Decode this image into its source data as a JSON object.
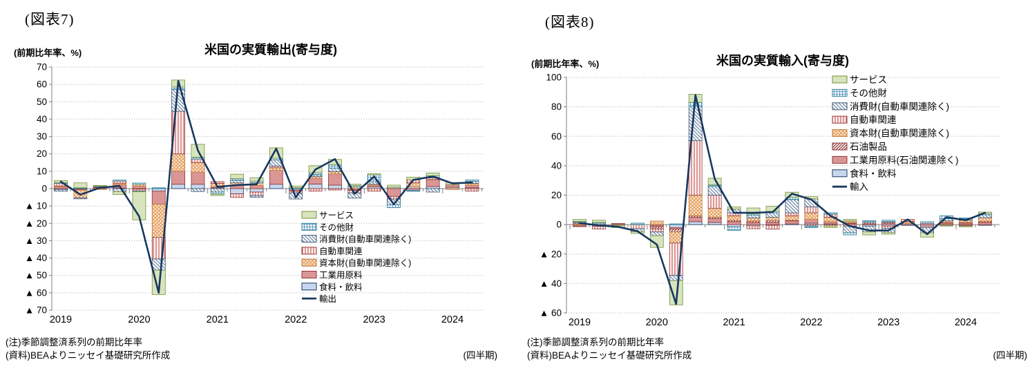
{
  "figure7": {
    "tag": "(図表7)",
    "unit_label": "(前期比年率、%)",
    "title": "米国の実質輸出(寄与度)",
    "note1": "(注)季節調整済系列の前期比年率",
    "note2": "(資料)BEAよりニッセイ基礎研究所作成",
    "axis_note": "(四半期)",
    "chart_data": {
      "type": "bar",
      "subtype": "stacked-bar-with-line",
      "x": [
        "2019Q1",
        "2019Q2",
        "2019Q3",
        "2019Q4",
        "2020Q1",
        "2020Q2",
        "2020Q3",
        "2020Q4",
        "2021Q1",
        "2021Q2",
        "2021Q3",
        "2021Q4",
        "2022Q1",
        "2022Q2",
        "2022Q3",
        "2022Q4",
        "2023Q1",
        "2023Q2",
        "2023Q3",
        "2023Q4",
        "2024Q1",
        "2024Q2"
      ],
      "year_labels": [
        "2019",
        "2020",
        "2021",
        "2022",
        "2023",
        "2024"
      ],
      "ylim": [
        -70,
        70
      ],
      "ytick_step": 10,
      "negative_tick_prefix": "▲",
      "grid": "dotted-horizontal",
      "legend_position": "inside-right",
      "series": [
        {
          "name": "サービス",
          "swatch": {
            "type": "solid",
            "bg": "#d7e4bd",
            "fg": "#d7e4bd",
            "stroke": "#76923c"
          },
          "values": [
            1.2,
            2.8,
            0.3,
            -1.6,
            -16.2,
            -14.0,
            4.0,
            7.5,
            -0.8,
            2.5,
            2.0,
            6.0,
            1.0,
            4.0,
            3.0,
            0.7,
            0.5,
            1.2,
            1.5,
            1.6,
            1.2,
            0.0
          ]
        },
        {
          "name": "その他財",
          "swatch": {
            "type": "grid",
            "bg": "#eef5fb",
            "fg": "#4a8ab5",
            "stroke": "#31859c"
          },
          "values": [
            0.4,
            0.5,
            0.0,
            0.5,
            0.7,
            0.5,
            1.5,
            1.0,
            -1.2,
            1.0,
            1.0,
            1.0,
            0.5,
            1.3,
            2.0,
            0.8,
            4.0,
            -1.7,
            -0.6,
            1.2,
            0.0,
            0.8
          ]
        },
        {
          "name": "消費財(自動車関連除く)",
          "swatch": {
            "type": "diag-down",
            "bg": "#ffffff",
            "fg": "#7d93ad",
            "stroke": "#3f5571"
          },
          "values": [
            -1.0,
            -0.5,
            0.5,
            -1.8,
            -0.5,
            -6.5,
            12.5,
            -1.7,
            -2.0,
            1.5,
            -1.0,
            3.5,
            -3.5,
            1.0,
            2.0,
            -3.0,
            1.5,
            -3.3,
            0.0,
            -2.0,
            0.0,
            1.2
          ]
        },
        {
          "name": "自動車関連",
          "swatch": {
            "type": "vlines",
            "bg": "#fdf0ef",
            "fg": "#c96a66",
            "stroke": "#953735"
          },
          "values": [
            1.5,
            0.0,
            0.4,
            1.3,
            -1.0,
            -12.5,
            24.5,
            2.0,
            1.0,
            -2.1,
            -2.0,
            1.0,
            -1.0,
            -1.5,
            -0.8,
            -1.5,
            -1.5,
            -1.5,
            1.8,
            1.0,
            0.0,
            -1.5
          ]
        },
        {
          "name": "資本財(自動車関連除く)",
          "swatch": {
            "type": "cross",
            "bg": "#fdeada",
            "fg": "#dd8a3c",
            "stroke": "#c07b3a"
          },
          "values": [
            0.5,
            -4.5,
            -0.3,
            0.8,
            1.0,
            -19.0,
            10.0,
            5.5,
            2.0,
            1.3,
            1.5,
            1.5,
            0.0,
            1.0,
            1.3,
            1.0,
            0.5,
            0.0,
            2.3,
            0.0,
            -0.5,
            1.0
          ]
        },
        {
          "name": "工業用原料",
          "swatch": {
            "type": "solid",
            "bg": "#d99694",
            "fg": "#d99694",
            "stroke": "#953735"
          },
          "values": [
            1.0,
            -0.5,
            0.6,
            2.0,
            1.5,
            -7.5,
            7.5,
            7.0,
            0.5,
            2.0,
            1.8,
            8.0,
            -0.7,
            3.3,
            6.5,
            -0.5,
            1.0,
            -4.5,
            -1.0,
            4.0,
            1.5,
            1.5
          ]
        },
        {
          "name": "食料・飲料",
          "swatch": {
            "type": "solid",
            "bg": "#c9d7ee",
            "fg": "#c9d7ee",
            "stroke": "#17375e"
          },
          "values": [
            -0.5,
            -0.4,
            -0.2,
            0.3,
            -0.3,
            -1.5,
            2.5,
            2.5,
            0.5,
            -3.0,
            -2.0,
            2.5,
            -0.8,
            2.6,
            2.0,
            -0.5,
            1.0,
            0.8,
            1.0,
            1.2,
            0.8,
            0.5
          ]
        }
      ],
      "line": {
        "name": "輸出",
        "color": "#17375e",
        "values": [
          4,
          -3.5,
          0.5,
          1.5,
          -16,
          -60,
          62,
          22,
          1,
          2,
          2.5,
          23,
          -5,
          11,
          17,
          -3,
          7,
          -9,
          5,
          7,
          3,
          3.5
        ]
      }
    }
  },
  "figure8": {
    "tag": "(図表8)",
    "unit_label": "(前期比年率、%)",
    "title": "米国の実質輸入(寄与度)",
    "note1": "(注)季節調整済系列の前期比年率",
    "note2": "(資料)BEAよりニッセイ基礎研究所作成",
    "axis_note": "(四半期)",
    "chart_data": {
      "type": "bar",
      "subtype": "stacked-bar-with-line",
      "x": [
        "2019Q1",
        "2019Q2",
        "2019Q3",
        "2019Q4",
        "2020Q1",
        "2020Q2",
        "2020Q3",
        "2020Q4",
        "2021Q1",
        "2021Q2",
        "2021Q3",
        "2021Q4",
        "2022Q1",
        "2022Q2",
        "2022Q3",
        "2022Q4",
        "2023Q1",
        "2023Q2",
        "2023Q3",
        "2023Q4",
        "2024Q1",
        "2024Q2"
      ],
      "year_labels": [
        "2019",
        "2020",
        "2021",
        "2022",
        "2023",
        "2024"
      ],
      "ylim": [
        -60,
        100
      ],
      "ytick_step": 20,
      "negative_tick_prefix": "▲",
      "grid": "dotted-horizontal",
      "legend_position": "inside-right-top",
      "series": [
        {
          "name": "サービス",
          "swatch": {
            "type": "solid",
            "bg": "#d7e4bd",
            "fg": "#d7e4bd",
            "stroke": "#76923c"
          },
          "values": [
            1.3,
            1.5,
            -1.5,
            -1.2,
            -8.0,
            -16.5,
            5.5,
            4.5,
            1.5,
            4.0,
            3.5,
            3.5,
            1.5,
            -1.0,
            1.0,
            -2.0,
            -1.0,
            0.0,
            -3.0,
            -0.5,
            -0.5,
            1.0
          ]
        },
        {
          "name": "その他財",
          "swatch": {
            "type": "grid",
            "bg": "#eef5fb",
            "fg": "#4a8ab5",
            "stroke": "#31859c"
          },
          "values": [
            0.3,
            0.5,
            0.0,
            1.0,
            0.0,
            0.5,
            3.0,
            1.0,
            -2.5,
            0.8,
            1.0,
            1.5,
            -1.0,
            1.0,
            -1.5,
            1.2,
            1.2,
            0.0,
            1.0,
            2.0,
            0.5,
            0.8
          ]
        },
        {
          "name": "消費財(自動車関連除く)",
          "swatch": {
            "type": "diag-down",
            "bg": "#ffffff",
            "fg": "#7d93ad",
            "stroke": "#3f5571"
          },
          "values": [
            0.6,
            1.0,
            0.0,
            -2.0,
            -2.5,
            -3.5,
            23.0,
            6.0,
            2.5,
            2.0,
            3.0,
            9.0,
            5.5,
            0.0,
            -4.5,
            -4.0,
            -3.0,
            0.0,
            -3.5,
            1.5,
            1.0,
            2.0
          ]
        },
        {
          "name": "自動車関連",
          "swatch": {
            "type": "vlines",
            "bg": "#fdf0ef",
            "fg": "#c96a66",
            "stroke": "#953735"
          },
          "values": [
            0.8,
            -1.8,
            0.0,
            -2.8,
            -2.0,
            -22.0,
            37.0,
            9.0,
            2.0,
            -2.0,
            -2.6,
            2.0,
            4.0,
            2.0,
            -1.0,
            0.0,
            -1.5,
            1.5,
            -1.0,
            0.0,
            -0.5,
            0.0
          ]
        },
        {
          "name": "資本財(自動車関連除く)",
          "swatch": {
            "type": "cross",
            "bg": "#fdeada",
            "fg": "#dd8a3c",
            "stroke": "#c07b3a"
          },
          "values": [
            0.5,
            0.0,
            0.0,
            0.0,
            2.4,
            -7.5,
            14.0,
            6.0,
            3.0,
            2.0,
            2.0,
            3.0,
            4.5,
            3.0,
            1.0,
            0.0,
            0.0,
            1.0,
            0.0,
            1.0,
            1.5,
            2.5
          ]
        },
        {
          "name": "石油製品",
          "swatch": {
            "type": "diag-up",
            "bg": "#ffffff",
            "fg": "#8c3836",
            "stroke": "#8c3836"
          },
          "values": [
            -0.5,
            0.0,
            -0.5,
            0.0,
            -1.5,
            -2.0,
            1.0,
            1.0,
            1.0,
            1.0,
            1.5,
            0.5,
            -1.0,
            -1.0,
            0.7,
            1.0,
            0.8,
            1.0,
            0.0,
            0.5,
            0.5,
            0.7
          ]
        },
        {
          "name": "工業用原料(石油関連除く)",
          "swatch": {
            "type": "solid",
            "bg": "#d99694",
            "fg": "#d99694",
            "stroke": "#953735"
          },
          "values": [
            -0.9,
            -1.2,
            0.8,
            0.0,
            -1.0,
            -1.0,
            3.0,
            2.5,
            2.0,
            1.5,
            1.5,
            2.0,
            2.5,
            1.5,
            0.8,
            0.5,
            1.0,
            0.0,
            1.0,
            1.0,
            1.0,
            1.5
          ]
        },
        {
          "name": "食料・飲料",
          "swatch": {
            "type": "solid",
            "bg": "#c9d7ee",
            "fg": "#c9d7ee",
            "stroke": "#17375e"
          },
          "values": [
            0.0,
            0.0,
            0.0,
            0.0,
            -0.5,
            -2.0,
            2.0,
            1.5,
            -1.5,
            -0.8,
            -0.5,
            0.5,
            1.0,
            0.5,
            0.0,
            -1.0,
            -1.0,
            -0.5,
            -1.0,
            -0.5,
            -0.5,
            -0.5
          ]
        }
      ],
      "line": {
        "name": "輸入",
        "color": "#17375e",
        "values": [
          1,
          -0.5,
          -1.5,
          -4.5,
          -13.5,
          -54,
          88,
          31,
          8,
          8,
          8.5,
          21,
          17,
          6,
          -1,
          -4,
          -4,
          3.5,
          -6.5,
          5,
          3,
          8
        ]
      }
    }
  }
}
